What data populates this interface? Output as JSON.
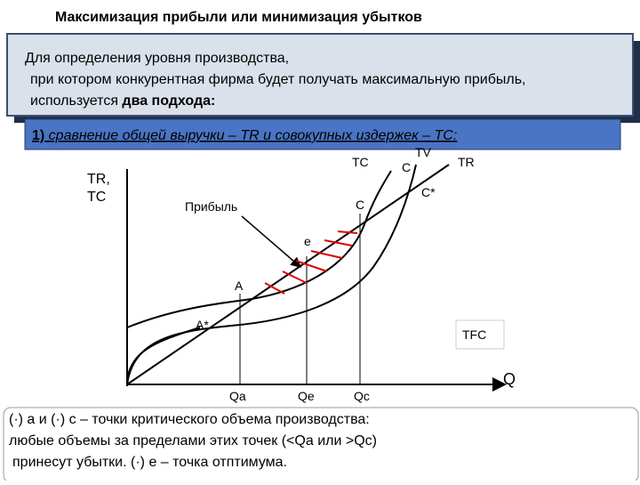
{
  "header": {
    "title": "Максимизация прибыли или минимизация убытков"
  },
  "intro": {
    "line1": "Для определения уровня производства,",
    "line2": "при котором конкурентная фирма будет получать максимальную прибыль,",
    "line3_plain": "используется ",
    "line3_bold": "два подхода:"
  },
  "method": {
    "num": "1)",
    "text": " сравнение общей выручки – TR и совокупных издержек – TC:"
  },
  "diagram": {
    "y_axis_label_1": "TR,",
    "y_axis_label_2": "TC",
    "x_axis_label": "Q",
    "tc": "TC",
    "tv": "TV",
    "c": "C",
    "tr": "TR",
    "c_star": "C*",
    "c_low": "C",
    "profit": "Прибыль",
    "e": "e",
    "a": "A",
    "a_star": "A*",
    "tfc": "TFC",
    "qa": "Qa",
    "qe": "Qe",
    "qc": "Qc"
  },
  "note": {
    "line1": "(·) а и (·) с – точки критического объема производства:",
    "line2": "любые объемы за пределами этих точек (<Qa или >Qc)",
    "line3": "принесут убытки. (·) е – точка отптимума."
  }
}
